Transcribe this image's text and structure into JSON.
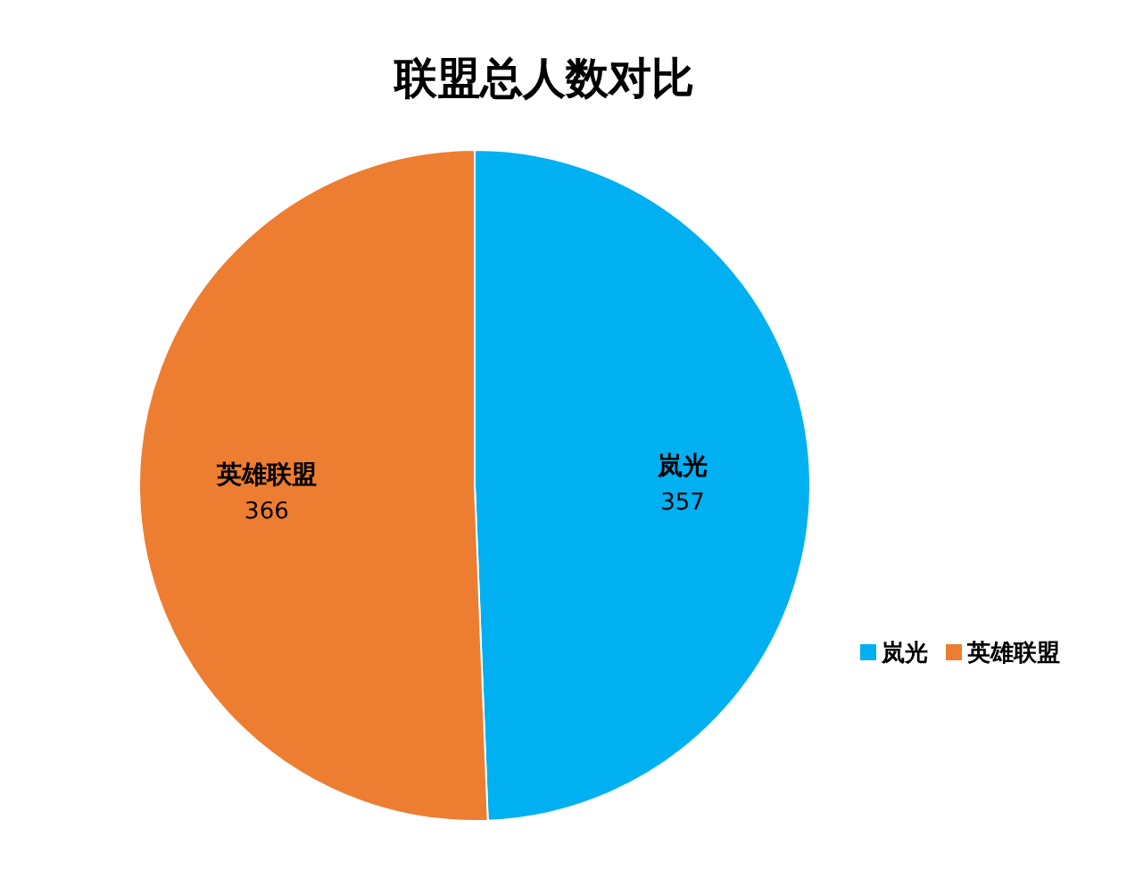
{
  "chart_data": {
    "type": "pie",
    "title": "联盟总人数对比",
    "categories": [
      "岚光",
      "英雄联盟"
    ],
    "values": [
      357,
      366
    ],
    "colors": [
      "#00b0f0",
      "#ed7d31"
    ],
    "data_labels": true,
    "legend": "right"
  }
}
